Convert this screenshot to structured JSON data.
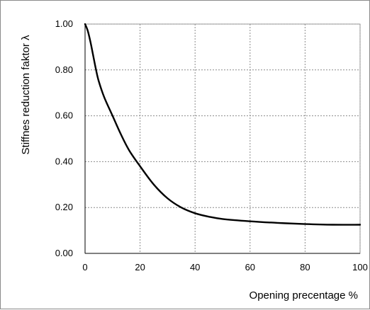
{
  "chart_data": {
    "type": "line",
    "title": "",
    "xlabel": "Opening precentage %",
    "ylabel": "Stiffnes reduction faktor λ",
    "xlim": [
      0,
      100
    ],
    "ylim": [
      0,
      1.0
    ],
    "x_ticks": [
      "0",
      "20",
      "40",
      "60",
      "80",
      "100"
    ],
    "y_ticks": [
      "0.00",
      "0.20",
      "0.40",
      "0.60",
      "0.80",
      "1.00"
    ],
    "grid": true,
    "legend": "none",
    "series": [
      {
        "color": "#000000",
        "x": [
          0,
          1,
          2,
          3,
          4,
          5,
          7,
          10,
          13,
          16,
          20,
          25,
          30,
          35,
          40,
          45,
          50,
          60,
          70,
          80,
          90,
          100
        ],
        "y": [
          1.0,
          0.97,
          0.92,
          0.86,
          0.8,
          0.75,
          0.68,
          0.6,
          0.52,
          0.45,
          0.38,
          0.3,
          0.24,
          0.2,
          0.175,
          0.16,
          0.15,
          0.14,
          0.133,
          0.128,
          0.125,
          0.125
        ]
      }
    ]
  }
}
